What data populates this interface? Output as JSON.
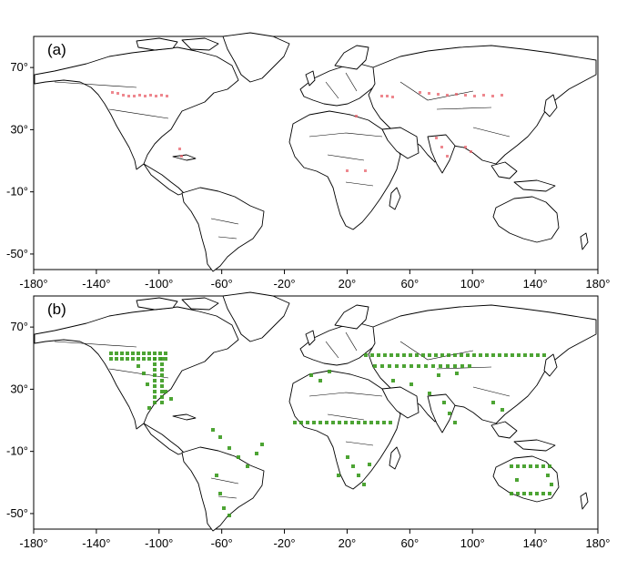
{
  "figure": {
    "panels": [
      {
        "label": "(a)",
        "x_ticks": [
          "-180°",
          "-140°",
          "-100°",
          "-60°",
          "-20°",
          "20°",
          "60°",
          "100°",
          "140°",
          "180°"
        ],
        "y_ticks": [
          "70°",
          "30°",
          "-10°",
          "-50°"
        ],
        "highlight_color": "#e8606a"
      },
      {
        "label": "(b)",
        "x_ticks": [
          "-180°",
          "-140°",
          "-100°",
          "-60°",
          "-20°",
          "20°",
          "60°",
          "100°",
          "140°",
          "180°"
        ],
        "y_ticks": [
          "70°",
          "30°",
          "-10°",
          "-50°"
        ],
        "highlight_color": "#3a9a1e"
      }
    ]
  },
  "chart_data": {
    "type": "map",
    "x_range": [
      -180,
      180
    ],
    "y_range": [
      -60,
      90
    ],
    "x_ticks": [
      -180,
      -140,
      -100,
      -60,
      -20,
      20,
      60,
      100,
      140,
      180
    ],
    "y_ticks": [
      70,
      30,
      -10,
      -50
    ]
  }
}
